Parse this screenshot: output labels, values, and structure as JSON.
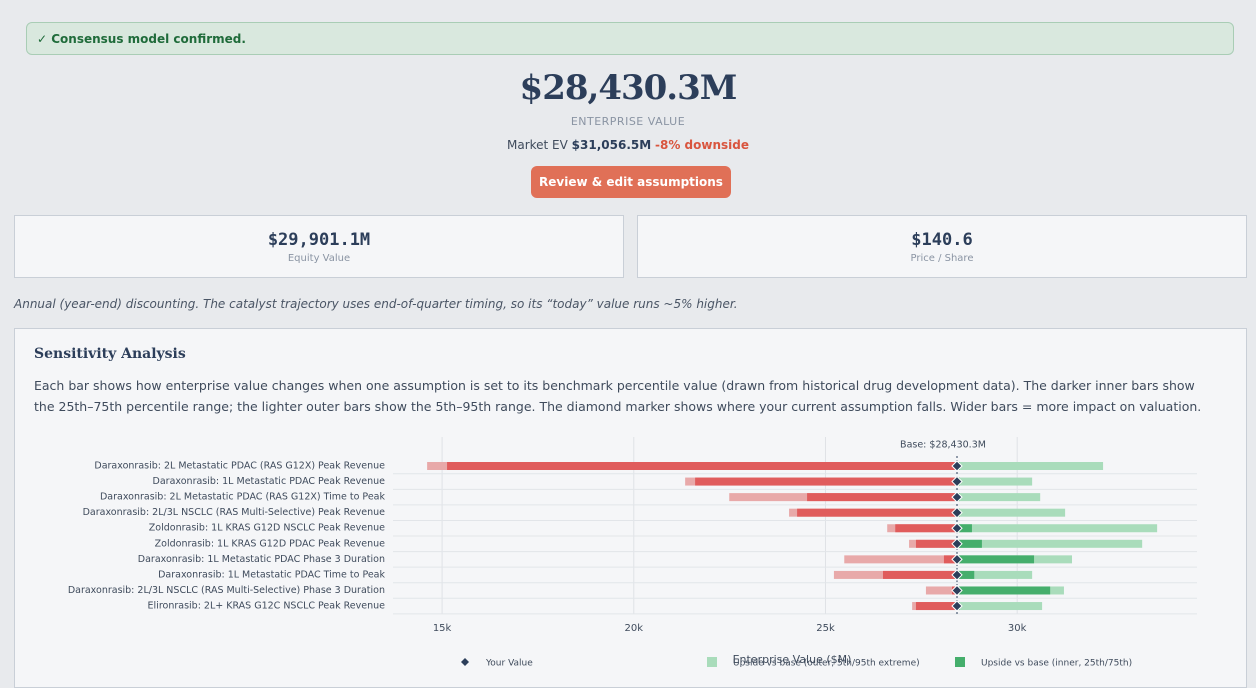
{
  "banner": "✓ Consensus model confirmed.",
  "headline": {
    "value": "$28,430.3M",
    "label": "ENTERPRISE VALUE"
  },
  "market": {
    "label": "Market EV",
    "value": "$31,056.5M",
    "delta": "-8% downside"
  },
  "button": "Review & edit assumptions",
  "cards": [
    {
      "value": "$29,901.1M",
      "label": "Equity Value"
    },
    {
      "value": "$140.6",
      "label": "Price / Share"
    }
  ],
  "note": "Annual (year-end) discounting. The catalyst trajectory uses end-of-quarter timing, so its “today” value runs ~5% higher.",
  "panel": {
    "title": "Sensitivity Analysis",
    "description": "Each bar shows how enterprise value changes when one assumption is set to its benchmark percentile value (drawn from historical drug development data). The darker inner bars show the 25th–75th percentile range; the lighter outer bars show the 5th–95th range. The diamond marker shows where your current assumption falls. Wider bars = more impact on valuation."
  },
  "chart_data": {
    "type": "tornado",
    "x_label": "Enterprise Value ($M)",
    "base": {
      "value": 28430.3,
      "label": "Base: $28,430.3M"
    },
    "categories": [
      "Daraxonrasib: 2L Metastatic PDAC (RAS G12X) Peak Revenue",
      "Daraxonrasib: 1L Metastatic PDAC Peak Revenue",
      "Daraxonrasib: 2L Metastatic PDAC (RAS G12X) Time to Peak",
      "Daraxonrasib: 2L/3L NSCLC (RAS Multi-Selective) Peak Revenue",
      "Zoldonrasib: 1L KRAS G12D NSCLC Peak Revenue",
      "Zoldonrasib: 1L KRAS G12D PDAC Peak Revenue",
      "Daraxonrasib: 1L Metastatic PDAC Phase 3 Duration",
      "Daraxonrasib: 1L Metastatic PDAC Time to Peak",
      "Daraxonrasib: 2L/3L NSCLC (RAS Multi-Selective) Phase 3 Duration",
      "Elironrasib: 2L+ KRAS G12C NSCLC Peak Revenue"
    ],
    "p5": [
      14610,
      21340,
      22490,
      24050,
      26610,
      27180,
      25490,
      25220,
      27620,
      27260
    ],
    "p25": [
      15130,
      21600,
      24520,
      24260,
      26820,
      27360,
      28090,
      26500,
      28300,
      27360
    ],
    "p75": [
      28500,
      28500,
      28500,
      28500,
      28820,
      29080,
      30440,
      28880,
      30860,
      28500
    ],
    "p95": [
      32240,
      30390,
      30600,
      31250,
      33650,
      33260,
      31430,
      30390,
      31220,
      30650
    ],
    "your_value": [
      28430.3,
      28430.3,
      28430.3,
      28430.3,
      28430.3,
      28430.3,
      28430.3,
      28430.3,
      28430.3,
      28430.3
    ],
    "colors": {
      "down_outer": "#e8a9a9",
      "down_inner": "#e05c5c",
      "up_outer": "#a9dcbb",
      "up_inner": "#45ae6c",
      "marker": "#2c3e5a"
    },
    "xlim": [
      13720,
      34690
    ],
    "xticks": [
      {
        "value": 15000,
        "label": "15k"
      },
      {
        "value": 20000,
        "label": "20k"
      },
      {
        "value": 25000,
        "label": "25k"
      },
      {
        "value": 30000,
        "label": "30k"
      }
    ],
    "grid": true,
    "legend": [
      {
        "name": "Your Value",
        "color": "#2c3e5a"
      },
      {
        "name": "Upside vs base (outer, 5th/95th extreme)",
        "color": "#a9dcbb"
      },
      {
        "name": "Upside vs base (inner, 25th/75th)",
        "color": "#45ae6c"
      }
    ]
  }
}
